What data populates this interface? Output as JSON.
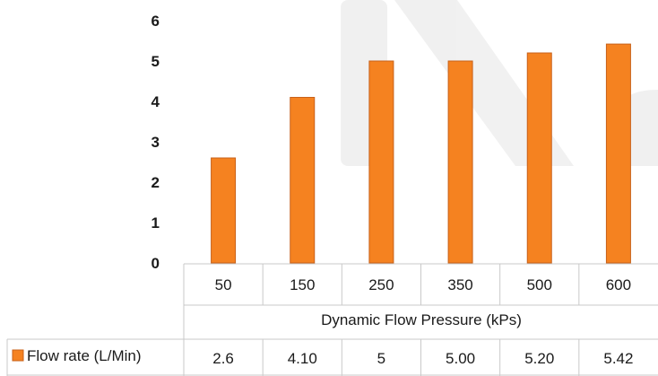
{
  "chart_data": {
    "type": "bar",
    "categories": [
      "50",
      "150",
      "250",
      "350",
      "500",
      "600"
    ],
    "series": [
      {
        "name": "Flow rate (L/Min)",
        "values": [
          2.6,
          4.1,
          5,
          5.0,
          5.2,
          5.42
        ]
      }
    ],
    "data_labels": [
      "2.6",
      "4.10",
      "5",
      "5.00",
      "5.20",
      "5.42"
    ],
    "xlabel": "Dynamic Flow Pressure (kPs)",
    "ylabel": "",
    "ylim": [
      0,
      6
    ],
    "yticks": [
      "0",
      "1",
      "2",
      "3",
      "4",
      "5",
      "6"
    ],
    "grid": false,
    "legend": "data-table",
    "colors": {
      "bar_fill": "#F58220",
      "bar_edge": "#C8611A",
      "table_border": "#C9C9C9"
    }
  }
}
